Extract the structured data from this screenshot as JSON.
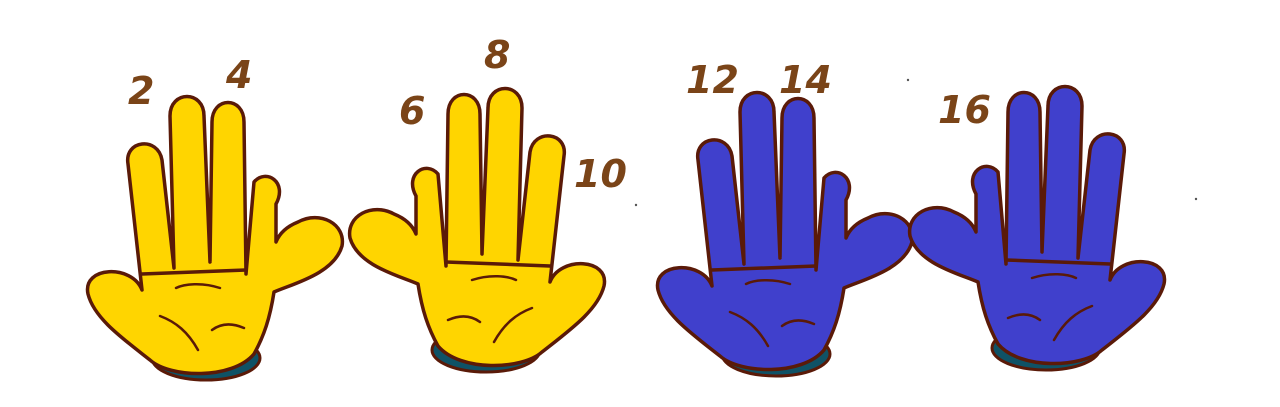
{
  "colors": {
    "yellow_hand": "#FFD500",
    "blue_hand": "#4040CC",
    "outline": "#5A1A08",
    "cuff": "#0F5266",
    "number_text": "#7A4418",
    "background": "#FFFFFF"
  },
  "hands": [
    {
      "name": "hand-1",
      "color": "yellow"
    },
    {
      "name": "hand-2",
      "color": "yellow"
    },
    {
      "name": "hand-3",
      "color": "blue"
    },
    {
      "name": "hand-4",
      "color": "blue"
    }
  ],
  "numbers": {
    "n2": "2",
    "n4": "4",
    "n6": "6",
    "n8": "8",
    "n10": "10",
    "n12": "12",
    "n14": "14",
    "n16": "16"
  }
}
